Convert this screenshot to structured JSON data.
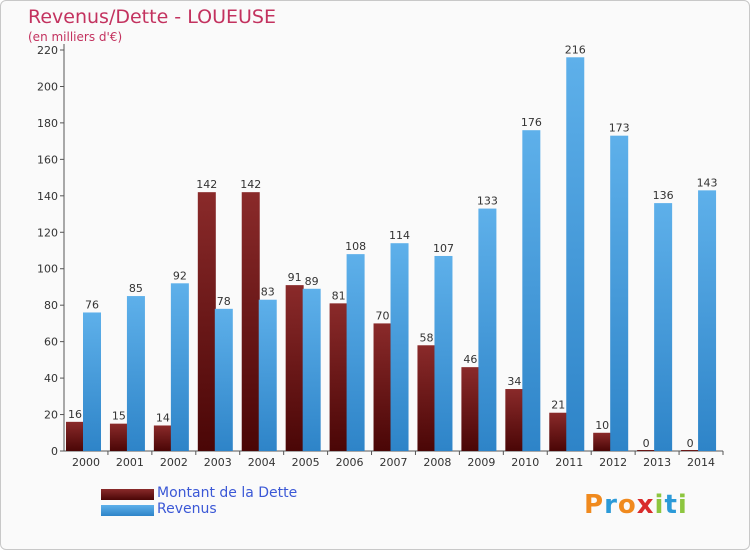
{
  "header": {
    "title": "Revenus/Dette - LOUEUSE",
    "subtitle": "(en milliers d'€)"
  },
  "legend": {
    "items": [
      {
        "label": "Montant de la Dette",
        "color": "#6e1414"
      },
      {
        "label": "Revenus",
        "color": "#3d9be0"
      }
    ]
  },
  "logo": {
    "letters": [
      "P",
      "r",
      "o",
      "x",
      "i",
      "t",
      "i"
    ],
    "colors": [
      "#f08a1e",
      "#2b9ad8",
      "#f08a1e",
      "#d92b2b",
      "#8dc63f",
      "#2b9ad8",
      "#8dc63f"
    ]
  },
  "chart_data": {
    "type": "bar",
    "title": "Revenus/Dette - LOUEUSE",
    "subtitle": "(en milliers d'€)",
    "categories": [
      "2000",
      "2001",
      "2002",
      "2003",
      "2004",
      "2005",
      "2006",
      "2007",
      "2008",
      "2009",
      "2010",
      "2011",
      "2012",
      "2013",
      "2014"
    ],
    "series": [
      {
        "name": "Montant de la Dette",
        "color": "#6e1414",
        "values": [
          16,
          15,
          14,
          142,
          142,
          91,
          81,
          70,
          58,
          46,
          34,
          21,
          10,
          0,
          0
        ]
      },
      {
        "name": "Revenus",
        "color": "#3d9be0",
        "values": [
          76,
          85,
          92,
          78,
          83,
          89,
          108,
          114,
          107,
          133,
          176,
          216,
          173,
          136,
          143
        ]
      }
    ],
    "yticks": [
      0,
      20,
      40,
      60,
      80,
      100,
      120,
      140,
      160,
      180,
      200,
      220
    ],
    "ylim": [
      0,
      220
    ],
    "grid": false,
    "legend_position": "bottom-left"
  }
}
